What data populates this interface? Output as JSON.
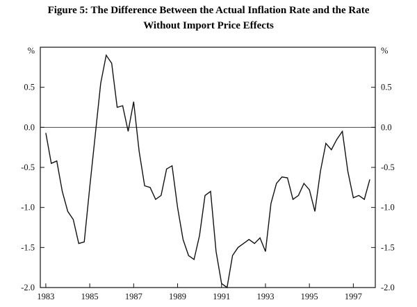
{
  "page": {
    "background": "#ffffff"
  },
  "chart_data": {
    "type": "line",
    "title_line1": "Figure 5: The Difference Between the Actual Inflation Rate and the Rate",
    "title_line2": "Without Import Price Effects",
    "y_axis_unit_left": "%",
    "y_axis_unit_right": "%",
    "ylim": [
      -2.0,
      1.0
    ],
    "yticks": [
      0.5,
      0.0,
      -0.5,
      -1.0,
      -1.5,
      -2.0
    ],
    "ytick_labels": [
      "0.5",
      "0.0",
      "-0.5",
      "-1.0",
      "-1.5",
      "-2.0"
    ],
    "xlim": [
      1982.75,
      1998.0
    ],
    "xticks": [
      1983,
      1985,
      1987,
      1989,
      1991,
      1993,
      1995,
      1997
    ],
    "xtick_labels": [
      "1983",
      "1985",
      "1987",
      "1989",
      "1991",
      "1993",
      "1995",
      "1997"
    ],
    "grid": false,
    "zero_line": true,
    "legend": "none",
    "line_color": "#111111",
    "series": [
      {
        "name": "actual-inflation-minus-inflation-without-import-price-effects",
        "x": [
          1983.0,
          1983.25,
          1983.5,
          1983.75,
          1984.0,
          1984.25,
          1984.5,
          1984.75,
          1985.0,
          1985.25,
          1985.5,
          1985.75,
          1986.0,
          1986.25,
          1986.5,
          1986.75,
          1987.0,
          1987.25,
          1987.5,
          1987.75,
          1988.0,
          1988.25,
          1988.5,
          1988.75,
          1989.0,
          1989.25,
          1989.5,
          1989.75,
          1990.0,
          1990.25,
          1990.5,
          1990.75,
          1991.0,
          1991.25,
          1991.5,
          1991.75,
          1992.0,
          1992.25,
          1992.5,
          1992.75,
          1993.0,
          1993.25,
          1993.5,
          1993.75,
          1994.0,
          1994.25,
          1994.5,
          1994.75,
          1995.0,
          1995.25,
          1995.5,
          1995.75,
          1996.0,
          1996.25,
          1996.5,
          1996.75,
          1997.0,
          1997.25,
          1997.5,
          1997.75
        ],
        "values": [
          -0.07,
          -0.45,
          -0.42,
          -0.8,
          -1.05,
          -1.15,
          -1.45,
          -1.43,
          -0.75,
          -0.1,
          0.55,
          0.9,
          0.8,
          0.25,
          0.27,
          -0.05,
          0.32,
          -0.3,
          -0.73,
          -0.75,
          -0.9,
          -0.85,
          -0.52,
          -0.48,
          -1.0,
          -1.4,
          -1.6,
          -1.65,
          -1.35,
          -0.85,
          -0.8,
          -1.55,
          -1.95,
          -2.0,
          -1.6,
          -1.5,
          -1.45,
          -1.4,
          -1.45,
          -1.38,
          -1.55,
          -0.95,
          -0.7,
          -0.62,
          -0.63,
          -0.9,
          -0.85,
          -0.7,
          -0.78,
          -1.05,
          -0.55,
          -0.2,
          -0.28,
          -0.15,
          -0.05,
          -0.55,
          -0.88,
          -0.85,
          -0.9,
          -0.65
        ]
      }
    ]
  }
}
